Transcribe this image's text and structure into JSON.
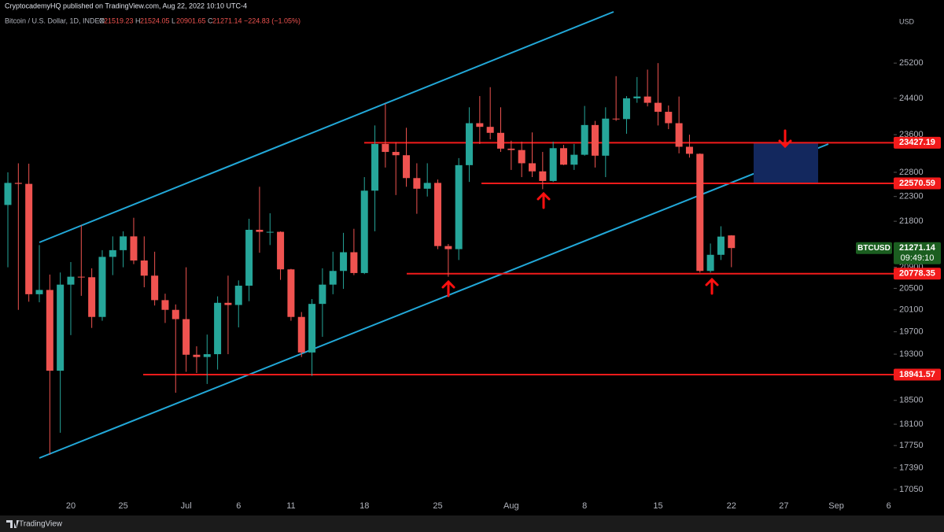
{
  "chart_data": {
    "type": "candlestick",
    "publisher": "CryptocademyHQ published on TradingView.com, Aug 22, 2022 10:10 UTC-4",
    "symbol": "Bitcoin / U.S. Dollar, 1D, INDEX",
    "header_keys": [
      "O",
      "H",
      "L",
      "C"
    ],
    "change": "−224.83 (−1.05%)",
    "currency": "USD",
    "ticker": "BTCUSD",
    "countdown": "09:49:10",
    "brand": "TradingView",
    "categories": [
      null,
      null,
      null,
      null,
      null,
      null,
      "20",
      null,
      null,
      null,
      null,
      "25",
      null,
      null,
      null,
      null,
      null,
      "Jul",
      null,
      null,
      null,
      null,
      "6",
      null,
      null,
      null,
      null,
      "11",
      null,
      null,
      null,
      null,
      null,
      null,
      "18",
      null,
      null,
      null,
      null,
      null,
      null,
      "25",
      null,
      null,
      null,
      null,
      null,
      null,
      "Aug",
      null,
      null,
      null,
      null,
      null,
      null,
      "8",
      null,
      null,
      null,
      null,
      null,
      null,
      "15",
      null,
      null,
      null,
      null,
      null,
      null,
      "22",
      null,
      null,
      null,
      null,
      "27",
      null,
      null,
      null,
      null,
      "Sep",
      null,
      null,
      null,
      null,
      "6"
    ],
    "open": [
      22128,
      22580,
      22560,
      20390,
      20470,
      19010,
      20570,
      20720,
      20710,
      19970,
      21100,
      21230,
      21500,
      21030,
      20740,
      20280,
      20100,
      19930,
      19290,
      19250,
      19300,
      20230,
      20190,
      20550,
      21630,
      21590,
      21590,
      20860,
      19970,
      19330,
      20210,
      20570,
      20830,
      21190,
      20790,
      22420,
      23400,
      23230,
      23160,
      22680,
      22460,
      22580,
      21310,
      21250,
      22950,
      23850,
      23770,
      23640,
      23300,
      23270,
      22990,
      22820,
      22620,
      23310,
      22960,
      23170,
      23810,
      23150,
      23950,
      23940,
      24400,
      24440,
      24300,
      24100,
      23850,
      23340,
      23190,
      20830,
      21140,
      21519.23,
      null,
      null,
      null,
      null,
      null,
      null,
      null,
      null,
      null,
      null,
      null,
      null,
      null,
      null,
      null
    ],
    "high": [
      22800,
      22990,
      22980,
      21330,
      20760,
      20800,
      21000,
      21720,
      20880,
      21230,
      21500,
      21600,
      21870,
      21500,
      21200,
      20400,
      20200,
      20900,
      19440,
      19650,
      20350,
      20740,
      20650,
      21850,
      22500,
      21960,
      21600,
      20870,
      20060,
      20300,
      20880,
      21200,
      21570,
      21650,
      22700,
      23800,
      24280,
      23440,
      23750,
      22990,
      22990,
      22650,
      21350,
      23100,
      24200,
      24450,
      24650,
      24200,
      23470,
      23450,
      23650,
      23230,
      23450,
      23380,
      23400,
      24230,
      23900,
      24200,
      24900,
      24450,
      24880,
      25050,
      25200,
      24240,
      24440,
      23600,
      23200,
      21360,
      21700,
      21524.05,
      null,
      null,
      null,
      null,
      null,
      null,
      null,
      null,
      null,
      null,
      null,
      null,
      null,
      null,
      null
    ],
    "low": [
      20900,
      20100,
      20250,
      20240,
      17600,
      17960,
      19640,
      20360,
      19770,
      19900,
      20750,
      20900,
      20960,
      20520,
      20180,
      19860,
      18630,
      18990,
      18970,
      18780,
      19030,
      19300,
      19780,
      20260,
      21180,
      21330,
      20660,
      19900,
      19250,
      18920,
      19610,
      20390,
      20490,
      20750,
      20770,
      21600,
      22900,
      22330,
      22500,
      21950,
      22300,
      21250,
      20720,
      21040,
      22600,
      23400,
      23500,
      23230,
      22850,
      22700,
      22700,
      22450,
      22600,
      22950,
      22850,
      23150,
      22900,
      22700,
      23900,
      23620,
      24300,
      24220,
      23800,
      23720,
      23200,
      23110,
      20800,
      20800,
      21040,
      20901.65,
      null,
      null,
      null,
      null,
      null,
      null,
      null,
      null,
      null,
      null,
      null,
      null,
      null,
      null,
      null
    ],
    "close": [
      22580,
      22560,
      20390,
      20470,
      19010,
      20570,
      20720,
      20710,
      19970,
      21100,
      21230,
      21500,
      21030,
      20740,
      20280,
      20100,
      19930,
      19290,
      19250,
      19300,
      20230,
      20190,
      20550,
      21630,
      21590,
      21590,
      20860,
      19970,
      19330,
      20210,
      20570,
      20830,
      21190,
      20790,
      22420,
      23400,
      23230,
      23160,
      22680,
      22460,
      22580,
      21310,
      21250,
      22950,
      23850,
      23770,
      23640,
      23300,
      23270,
      22990,
      22820,
      22620,
      23310,
      22960,
      23170,
      23810,
      23150,
      23950,
      23940,
      24400,
      24440,
      24300,
      24100,
      23850,
      23340,
      23190,
      20830,
      21140,
      21496,
      21271.14,
      null,
      null,
      null,
      null,
      null,
      null,
      null,
      null,
      null,
      null,
      null,
      null,
      null,
      null,
      null
    ],
    "up_color": "#26a69a",
    "down_color": "#ef5350",
    "yscale": "log",
    "ylim": [
      16890,
      26700
    ],
    "yticks": [
      25200,
      24400,
      23600,
      22800,
      22300,
      21800,
      20900,
      20500,
      20100,
      19700,
      19300,
      18500,
      18100,
      17750,
      17390,
      17050
    ],
    "levels": [
      {
        "value": 23427.19,
        "color": "#f21b1b"
      },
      {
        "value": 22570.59,
        "color": "#f21b1b"
      },
      {
        "value": 20778.35,
        "color": "#f21b1b"
      },
      {
        "value": 18941.57,
        "color": "#f21b1b"
      }
    ]
  }
}
